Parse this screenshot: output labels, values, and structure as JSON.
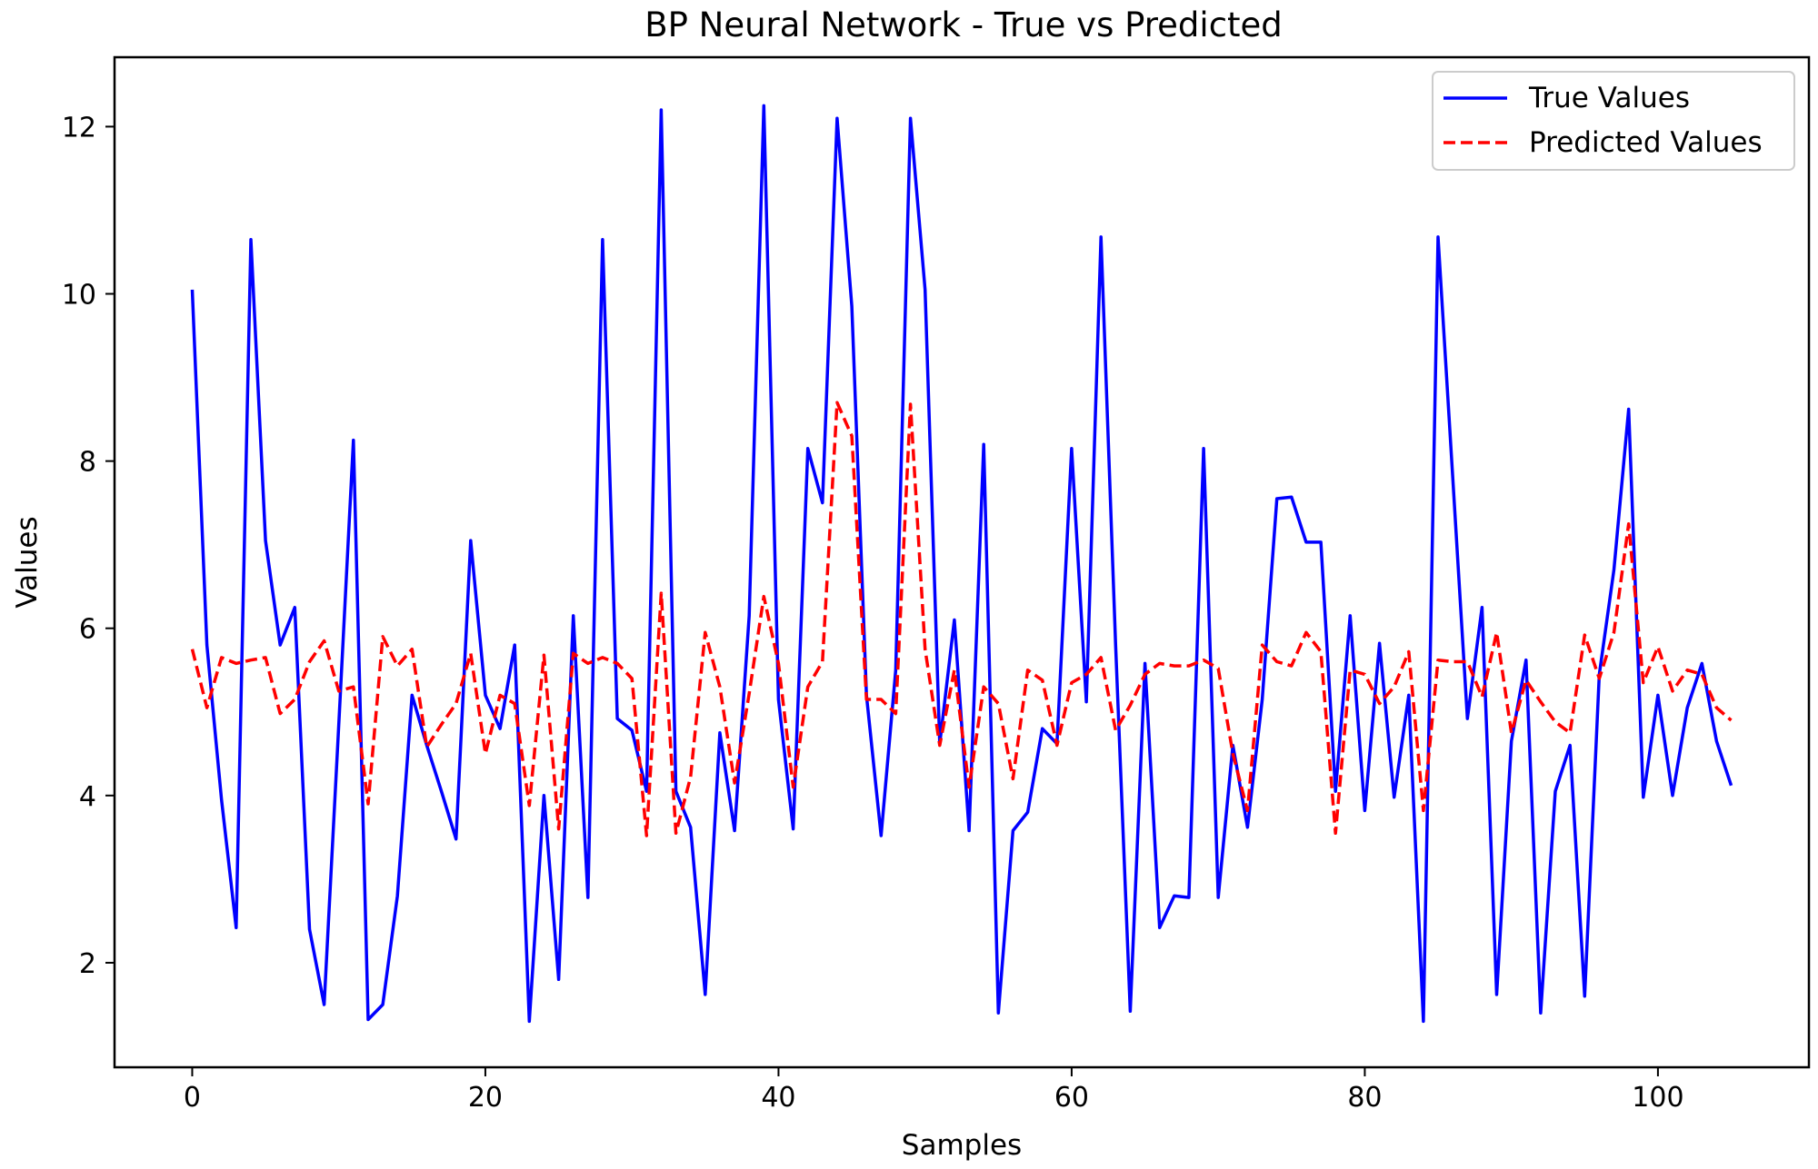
{
  "chart_data": {
    "type": "line",
    "title": "BP Neural Network - True vs Predicted",
    "xlabel": "Samples",
    "ylabel": "Values",
    "xlim": [
      -5.3,
      110.3
    ],
    "ylim": [
      0.75,
      12.83
    ],
    "xticks": [
      0,
      20,
      40,
      60,
      80,
      100
    ],
    "yticks": [
      2,
      4,
      6,
      8,
      10,
      12
    ],
    "grid": false,
    "legend_position": "top-right",
    "x": [
      0,
      1,
      2,
      3,
      4,
      5,
      6,
      7,
      8,
      9,
      10,
      11,
      12,
      13,
      14,
      15,
      16,
      17,
      18,
      19,
      20,
      21,
      22,
      23,
      24,
      25,
      26,
      27,
      28,
      29,
      30,
      31,
      32,
      33,
      34,
      35,
      36,
      37,
      38,
      39,
      40,
      41,
      42,
      43,
      44,
      45,
      46,
      47,
      48,
      49,
      50,
      51,
      52,
      53,
      54,
      55,
      56,
      57,
      58,
      59,
      60,
      61,
      62,
      63,
      64,
      65,
      66,
      67,
      68,
      69,
      70,
      71,
      72,
      73,
      74,
      75,
      76,
      77,
      78,
      79,
      80,
      81,
      82,
      83,
      84,
      85,
      86,
      87,
      88,
      89,
      90,
      91,
      92,
      93,
      94,
      95,
      96,
      97,
      98,
      99,
      100,
      101,
      102,
      103,
      104,
      105
    ],
    "series": [
      {
        "name": "True Values",
        "color": "#0000ff",
        "style": "solid",
        "values": [
          10.05,
          5.8,
          3.95,
          2.42,
          10.65,
          7.05,
          5.8,
          6.25,
          2.4,
          1.5,
          4.85,
          8.25,
          1.32,
          1.5,
          2.8,
          5.2,
          4.6,
          4.05,
          3.48,
          7.05,
          5.2,
          4.8,
          5.8,
          1.3,
          4.0,
          1.8,
          6.15,
          2.78,
          10.65,
          4.92,
          4.78,
          4.05,
          12.2,
          4.05,
          3.62,
          1.62,
          4.75,
          3.58,
          6.15,
          12.25,
          5.15,
          3.6,
          8.15,
          7.5,
          12.1,
          9.85,
          5.2,
          3.52,
          5.5,
          12.1,
          10.05,
          4.62,
          6.1,
          3.58,
          8.2,
          1.4,
          3.58,
          3.8,
          4.8,
          4.62,
          8.15,
          5.12,
          10.68,
          5.8,
          1.42,
          5.58,
          2.42,
          2.8,
          2.78,
          8.15,
          2.78,
          4.6,
          3.62,
          5.15,
          7.55,
          7.57,
          7.03,
          7.03,
          4.05,
          6.15,
          3.82,
          5.82,
          3.98,
          5.2,
          1.3,
          10.68,
          7.8,
          4.92,
          6.25,
          1.62,
          4.65,
          5.62,
          1.4,
          4.05,
          4.6,
          1.6,
          5.45,
          6.7,
          8.62,
          3.98,
          5.2,
          4.0,
          5.05,
          5.58,
          4.65,
          4.12
        ]
      },
      {
        "name": "Predicted Values",
        "color": "#ff0000",
        "style": "dashed",
        "values": [
          5.75,
          5.05,
          5.65,
          5.58,
          5.62,
          5.65,
          4.98,
          5.15,
          5.6,
          5.85,
          5.25,
          5.3,
          3.9,
          5.9,
          5.55,
          5.75,
          4.58,
          4.85,
          5.1,
          5.7,
          4.5,
          5.2,
          5.1,
          3.88,
          5.68,
          3.6,
          5.7,
          5.58,
          5.65,
          5.58,
          5.4,
          3.52,
          6.42,
          3.55,
          4.22,
          5.95,
          5.3,
          4.15,
          5.22,
          6.38,
          5.58,
          4.1,
          5.3,
          5.6,
          8.7,
          8.3,
          5.15,
          5.15,
          4.98,
          8.68,
          5.75,
          4.6,
          5.5,
          4.1,
          5.3,
          5.1,
          4.2,
          5.5,
          5.38,
          4.6,
          5.35,
          5.45,
          5.65,
          4.78,
          5.08,
          5.45,
          5.58,
          5.55,
          5.55,
          5.62,
          5.52,
          4.5,
          3.82,
          5.8,
          5.6,
          5.55,
          5.95,
          5.72,
          3.55,
          5.5,
          5.45,
          5.1,
          5.3,
          5.72,
          3.82,
          5.62,
          5.6,
          5.6,
          5.18,
          5.95,
          4.75,
          5.38,
          5.12,
          4.88,
          4.75,
          5.92,
          5.4,
          5.95,
          7.25,
          5.35,
          5.78,
          5.25,
          5.5,
          5.45,
          5.05,
          4.9
        ]
      }
    ]
  }
}
